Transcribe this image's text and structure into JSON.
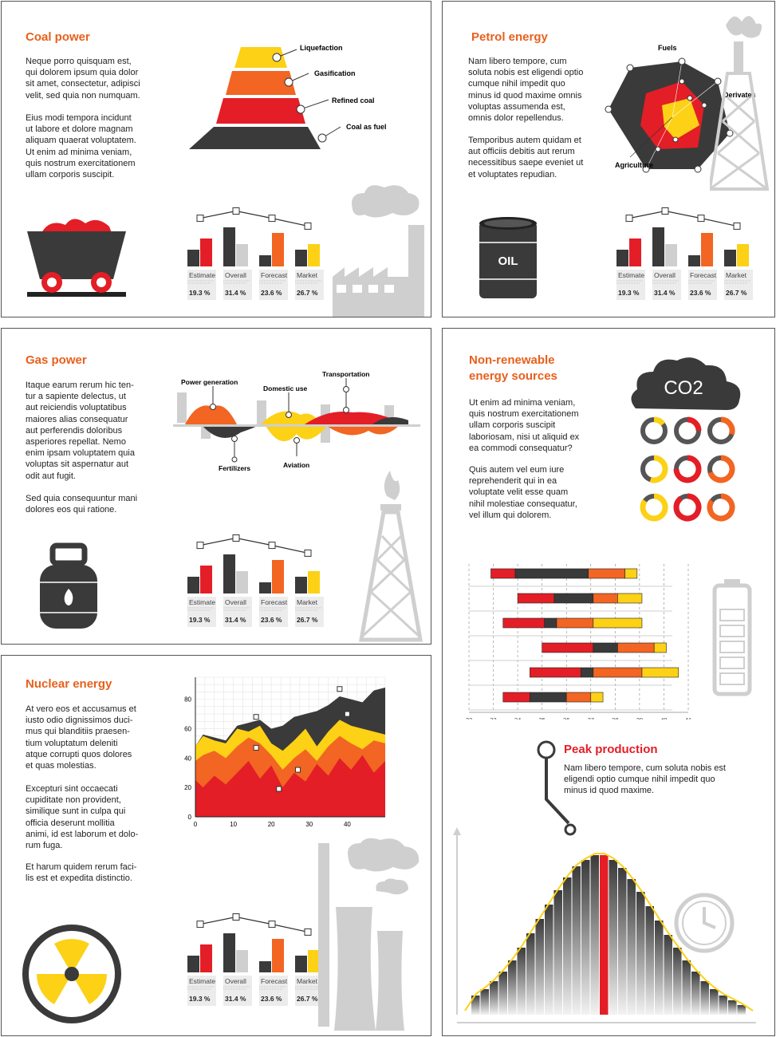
{
  "colors": {
    "red": "#e31e26",
    "orange": "#f26522",
    "yellow": "#fcd116",
    "dark": "#3a3a3a",
    "gray": "#cfcfcf",
    "title": "#e8601c"
  },
  "icons": [
    "coal-cart-icon",
    "factory-icon",
    "oil-barrel-icon",
    "oil-derrick-icon",
    "gas-canister-icon",
    "gas-derrick-icon",
    "co2-cloud-icon",
    "battery-icon",
    "radiation-icon",
    "nuclear-plant-icon",
    "clock-icon"
  ],
  "coal": {
    "title": "Coal power",
    "p1": "Neque porro quisquam est,\nqui dolorem ipsum quia dolor\nsit amet, consectetur, adipisci\nvelit, sed quia non numquam.",
    "p2": "Eius modi tempora incidunt\nut labore et dolore magnam\naliquam quaerat voluptatem.\nUt enim ad minima veniam,\nquis nostrum exercitationem\nullam corporis suscipit.",
    "pyramid_labels": [
      "Liquefaction",
      "Gasification",
      "Refined coal",
      "Coal as fuel"
    ]
  },
  "petrol": {
    "title": "Petrol energy",
    "p1": "Nam libero tempore, cum\nsoluta nobis est eligendi optio\ncumque nihil impedit quo\nminus id quod maxime omnis\nvoluptas assumenda est,\nomnis dolor repellendus.",
    "p2": "Temporibus autem quidam et\naut officiis debitis aut rerum\nnecessitibus saepe eveniet ut\net voluptates repudian.",
    "radar_labels": [
      "Fuels",
      "Derivates",
      "Agriculture"
    ],
    "barrel_label": "OIL"
  },
  "gas": {
    "title": "Gas power",
    "p1": "Itaque earum rerum hic ten-\ntur a sapiente delectus, ut\naut reiciendis voluptatibus\nmaiores alias consequatur\naut perferendis doloribus\nasperiores repellat. Nemo\nenim ipsam voluptatem quia\nvoluptas sit aspernatur aut\nodit aut fugit.",
    "p2": "Sed quia consequuntur mani\ndolores eos qui ratione.",
    "wave_labels": [
      "Power generation",
      "Domestic use",
      "Transportation",
      "Fertilizers",
      "Aviation"
    ]
  },
  "nonrenewable": {
    "title": "Non-renewable\nenergy sources",
    "p1": "Ut enim ad minima veniam,\nquis nostrum exercitationem\nullam corporis suscipit\nlaboriosam, nisi ut aliquid ex\nea commodi consequatur?",
    "p2": "Quis autem vel eum iure\nreprehenderit qui in ea\nvoluptate velit esse quam\nnihil molestiae consequatur,\nvel illum qui dolorem.",
    "co2_label": "CO2"
  },
  "peak": {
    "title": "Peak production",
    "text": "Nam libero tempore, cum soluta nobis est\neligendi optio cumque nihil impedit quo\nminus id quod maxime."
  },
  "nuclear": {
    "title": "Nuclear energy",
    "p1": "At vero eos et accusamus et\niusto odio dignissimos duci-\nmus qui blanditiis praesen-\ntium voluptatum deleniti\natque corrupti quos dolores\net quas molestias.",
    "p2": "Excepturi sint occaecati\ncupiditate non provident,\nsimilique sunt in culpa qui\nofficia deserunt mollitia\nanimi, id est laborum et dolo-\nrum fuga.",
    "p3": "Et harum quidem rerum faci-\nlis est et expedita distinctio."
  },
  "chart_data": [
    {
      "id": "bar-summary",
      "type": "bar",
      "categories": [
        "Estimate",
        "Overall",
        "Forecast",
        "Market"
      ],
      "values_text": [
        "19.3 %",
        "31.4 %",
        "23.6 %",
        "26.7 %"
      ],
      "series": [
        {
          "values": [
            30,
            70,
            20,
            30
          ]
        },
        {
          "values": [
            50,
            40,
            60,
            40
          ]
        }
      ],
      "line": [
        72,
        85,
        72,
        58
      ]
    },
    {
      "id": "nuclear-area",
      "type": "area",
      "x": [
        0,
        2,
        5,
        8,
        11,
        14,
        17,
        20,
        23,
        26,
        29,
        32,
        35,
        38,
        41,
        44,
        47,
        50
      ],
      "series": [
        {
          "color": "#e31e26",
          "values": [
            25,
            20,
            28,
            22,
            30,
            38,
            26,
            35,
            20,
            30,
            24,
            36,
            28,
            40,
            32,
            42,
            30,
            38
          ]
        },
        {
          "color": "#f26522",
          "values": [
            38,
            42,
            45,
            40,
            48,
            54,
            50,
            42,
            32,
            40,
            46,
            38,
            48,
            55,
            50,
            46,
            52,
            50
          ]
        },
        {
          "color": "#fcd116",
          "values": [
            48,
            55,
            52,
            50,
            60,
            58,
            62,
            50,
            45,
            52,
            60,
            48,
            58,
            66,
            62,
            60,
            58,
            56
          ]
        },
        {
          "color": "#3a3a3a",
          "values": [
            48,
            56,
            54,
            52,
            62,
            64,
            66,
            60,
            62,
            68,
            70,
            72,
            76,
            82,
            80,
            78,
            86,
            88
          ]
        }
      ],
      "markers": [
        [
          16,
          68
        ],
        [
          16,
          47
        ],
        [
          22,
          19
        ],
        [
          27,
          32
        ],
        [
          38,
          87
        ],
        [
          40,
          70
        ]
      ],
      "x_ticks": [
        "0",
        "10",
        "20",
        "30",
        "40"
      ],
      "y_ticks": [
        "0",
        "20",
        "40",
        "60",
        "80"
      ],
      "xlim": [
        0,
        50
      ],
      "ylim": [
        0,
        95
      ]
    },
    {
      "id": "stacked-range",
      "type": "bar",
      "x_ticks": [
        "32",
        "33",
        "34",
        "35",
        "36",
        "37",
        "38",
        "39",
        "40",
        "41"
      ],
      "xlim": [
        32,
        41
      ],
      "rows": [
        {
          "segments": [
            [
              32.9,
              33.9,
              "#e31e26"
            ],
            [
              33.9,
              36.9,
              "#3a3a3a"
            ],
            [
              36.9,
              38.4,
              "#f26522"
            ],
            [
              38.4,
              38.9,
              "#fcd116"
            ]
          ]
        },
        {
          "segments": [
            [
              34.0,
              35.5,
              "#e31e26"
            ],
            [
              35.5,
              37.1,
              "#3a3a3a"
            ],
            [
              37.1,
              38.1,
              "#f26522"
            ],
            [
              38.1,
              39.1,
              "#fcd116"
            ]
          ]
        },
        {
          "segments": [
            [
              33.4,
              35.1,
              "#e31e26"
            ],
            [
              35.1,
              35.6,
              "#3a3a3a"
            ],
            [
              35.6,
              37.1,
              "#f26522"
            ],
            [
              37.1,
              39.1,
              "#fcd116"
            ]
          ]
        },
        {
          "segments": [
            [
              35.0,
              37.1,
              "#e31e26"
            ],
            [
              37.1,
              38.1,
              "#3a3a3a"
            ],
            [
              38.1,
              39.6,
              "#f26522"
            ],
            [
              39.6,
              40.1,
              "#fcd116"
            ]
          ]
        },
        {
          "segments": [
            [
              34.5,
              36.6,
              "#e31e26"
            ],
            [
              36.6,
              37.1,
              "#3a3a3a"
            ],
            [
              37.1,
              39.1,
              "#f26522"
            ],
            [
              39.1,
              40.6,
              "#fcd116"
            ]
          ]
        },
        {
          "segments": [
            [
              33.4,
              34.5,
              "#e31e26"
            ],
            [
              34.5,
              36.0,
              "#3a3a3a"
            ],
            [
              36.0,
              37.0,
              "#f26522"
            ],
            [
              37.0,
              37.5,
              "#fcd116"
            ]
          ]
        }
      ]
    },
    {
      "id": "peak-production",
      "type": "bar",
      "values": [
        12,
        16,
        21,
        27,
        34,
        42,
        51,
        60,
        69,
        78,
        86,
        93,
        97,
        100,
        100,
        97,
        92,
        85,
        77,
        68,
        59,
        50,
        42,
        34,
        27,
        21,
        16,
        12,
        9,
        6
      ],
      "highlight_index": 14
    }
  ]
}
